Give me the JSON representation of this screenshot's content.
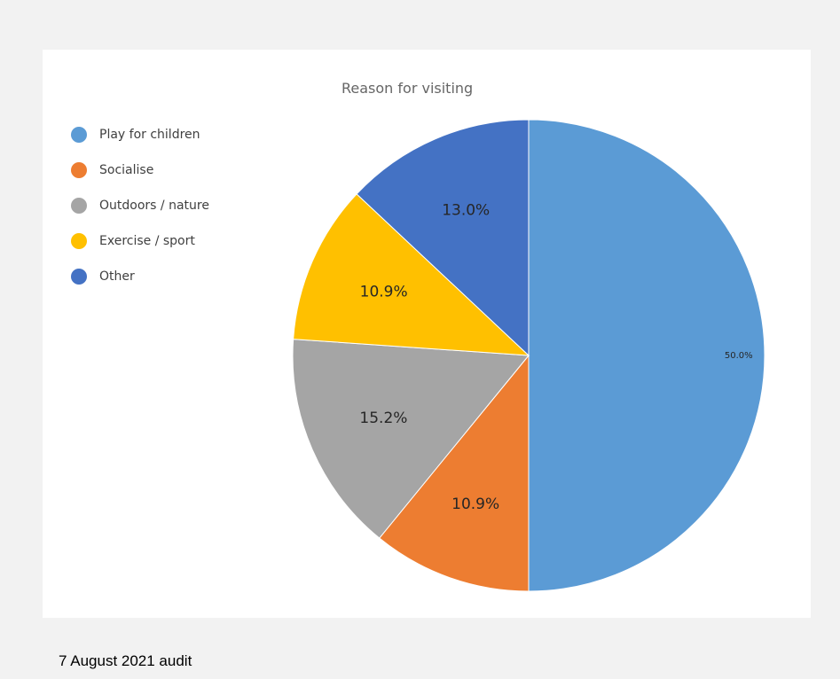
{
  "chart_data": {
    "type": "pie",
    "title": "Reason for visiting",
    "categories": [
      "Play for children",
      "Socialise",
      "Outdoors / nature",
      "Exercise / sport",
      "Other"
    ],
    "values": [
      50.0,
      10.9,
      15.2,
      10.9,
      13.0
    ],
    "labels": [
      "50.0%",
      "10.9%",
      "15.2%",
      "10.9%",
      "13.0%"
    ],
    "colors": [
      "#5b9bd5",
      "#ed7d31",
      "#a5a5a5",
      "#ffc000",
      "#4472c4"
    ],
    "legend_position": "top-left",
    "direction": "clockwise-from-top"
  },
  "caption": "7 August 2021 audit"
}
